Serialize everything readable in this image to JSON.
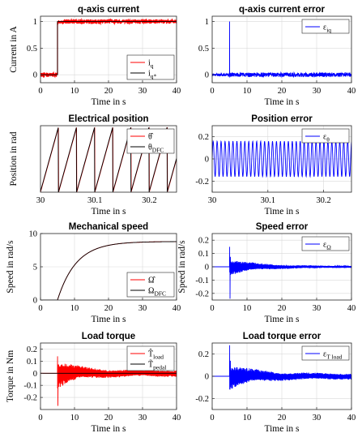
{
  "chart_data": [
    {
      "id": "p1",
      "type": "line",
      "title": "q-axis current",
      "xlabel": "Time in s",
      "ylabel": "Current in A",
      "xlim": [
        0,
        40
      ],
      "ylim": [
        -0.15,
        1.1
      ],
      "xticks": [
        0,
        10,
        20,
        30,
        40
      ],
      "xticklabels": [
        "0",
        "10",
        "20",
        "30",
        "40"
      ],
      "yticks": [
        0,
        0.5,
        1
      ],
      "yticklabels": [
        "0",
        "0.5",
        "1"
      ],
      "grid": true,
      "legend_position": "bottom-right",
      "series": [
        {
          "name": "i_q",
          "color": "#ff0000",
          "kind": "step",
          "step_at": 5,
          "before": 0,
          "after": 1,
          "noise": 0.04
        },
        {
          "name": "i_q*",
          "color": "#000000",
          "kind": "step",
          "step_at": 5,
          "before": 0,
          "after": 1,
          "noise": 0
        }
      ]
    },
    {
      "id": "p2",
      "type": "line",
      "title": "q-axis current error",
      "xlabel": "Time in s",
      "ylabel": "",
      "xlim": [
        0,
        40
      ],
      "ylim": [
        -0.15,
        1.1
      ],
      "xticks": [
        0,
        10,
        20,
        30,
        40
      ],
      "xticklabels": [
        "0",
        "10",
        "20",
        "30",
        "40"
      ],
      "yticks": [
        0,
        0.5,
        1
      ],
      "yticklabels": [
        "0",
        "0.5",
        "1"
      ],
      "grid": true,
      "legend_position": "top-right",
      "series": [
        {
          "name": "ε_iq",
          "color": "#0000ff",
          "kind": "error_noise",
          "t0": 5,
          "spike_peak": 1.0,
          "spike_trough": -0.05,
          "noise": 0.04
        }
      ]
    },
    {
      "id": "p3",
      "type": "line",
      "title": "Electrical position",
      "xlabel": "Time in s",
      "ylabel": "Position in rad",
      "xlim": [
        30,
        30.25
      ],
      "ylim": [
        0,
        6.4
      ],
      "xticks": [
        30,
        30.1,
        30.2
      ],
      "xticklabels": [
        "30",
        "30.1",
        "30.2"
      ],
      "yticks": [],
      "yticklabels": [],
      "grid": true,
      "legend_position": "top-right",
      "series": [
        {
          "name": "θ̂",
          "color": "#ff0000",
          "kind": "sawtooth",
          "period": 0.0333,
          "phase": 0.0,
          "max": 6.28
        },
        {
          "name": "θ_DFC",
          "color": "#000000",
          "kind": "sawtooth",
          "period": 0.0333,
          "phase": 0.0004,
          "max": 6.28
        }
      ]
    },
    {
      "id": "p4",
      "type": "line",
      "title": "Position error",
      "xlabel": "Time in s",
      "ylabel": "",
      "xlim": [
        30,
        30.25
      ],
      "ylim": [
        -0.3,
        0.3
      ],
      "xticks": [
        30,
        30.1,
        30.2
      ],
      "xticklabels": [
        "30",
        "30.1",
        "30.2"
      ],
      "yticks": [
        -0.2,
        0,
        0.2
      ],
      "yticklabels": [
        "-0.2",
        "0",
        "0.2"
      ],
      "grid": true,
      "legend_position": "top-right",
      "series": [
        {
          "name": "ε_θ",
          "color": "#0000ff",
          "kind": "sine",
          "period": 0.0071,
          "amplitude": 0.16,
          "offset": 0.0
        }
      ]
    },
    {
      "id": "p5",
      "type": "line",
      "title": "Mechanical speed",
      "xlabel": "Time in s",
      "ylabel": "Speed in rad/s",
      "xlim": [
        0,
        40
      ],
      "ylim": [
        0,
        10
      ],
      "xticks": [
        0,
        10,
        20,
        30,
        40
      ],
      "xticklabels": [
        "0",
        "10",
        "20",
        "30",
        "40"
      ],
      "yticks": [
        0,
        5,
        10
      ],
      "yticklabels": [
        "0",
        "5",
        "10"
      ],
      "grid": true,
      "legend_position": "bottom-right",
      "series": [
        {
          "name": "Ω̂",
          "color": "#ff0000",
          "kind": "first_order",
          "t0": 5,
          "final": 8.8,
          "tau": 5.5
        },
        {
          "name": "Ω_DFC",
          "color": "#000000",
          "kind": "first_order",
          "t0": 5,
          "final": 8.8,
          "tau": 5.5
        }
      ]
    },
    {
      "id": "p6",
      "type": "line",
      "title": "Speed error",
      "xlabel": "Time in s",
      "ylabel": "Speed in rad/s",
      "xlim": [
        0,
        40
      ],
      "ylim": [
        -0.25,
        0.25
      ],
      "xticks": [
        0,
        10,
        20,
        30,
        40
      ],
      "xticklabels": [
        "0",
        "10",
        "20",
        "30",
        "40"
      ],
      "yticks": [
        -0.2,
        -0.1,
        0,
        0.1,
        0.2
      ],
      "yticklabels": [
        "-0.2",
        "-0.1",
        "0",
        "0.1",
        "0.2"
      ],
      "grid": true,
      "legend_position": "top-right",
      "series": [
        {
          "name": "ε_Ω",
          "color": "#0000ff",
          "kind": "decaying_osc",
          "t0": 5,
          "spike_peak": 0.15,
          "spike_trough": -0.24,
          "amp0": 0.06,
          "decay": 8,
          "floor": 0.008
        }
      ]
    },
    {
      "id": "p7",
      "type": "line",
      "title": "Load torque",
      "xlabel": "Time in s",
      "ylabel": "Torque in Nm",
      "xlim": [
        0,
        40
      ],
      "ylim": [
        -0.3,
        0.25
      ],
      "xticks": [
        0,
        10,
        20,
        30,
        40
      ],
      "xticklabels": [
        "0",
        "10",
        "20",
        "30",
        "40"
      ],
      "yticks": [
        -0.2,
        -0.1,
        0,
        0.1,
        0.2
      ],
      "yticklabels": [
        "-0.2",
        "-0.1",
        "0",
        "0.1",
        "0.2"
      ],
      "grid": true,
      "legend_position": "top-right",
      "series": [
        {
          "name": "T̂_load",
          "color": "#ff0000",
          "kind": "decaying_osc",
          "t0": 5,
          "spike_peak": 0.14,
          "spike_trough": -0.27,
          "amp0": 0.1,
          "decay": 6,
          "floor": 0.03
        },
        {
          "name": "T̃_pedal",
          "color": "#000000",
          "kind": "flat",
          "value": 0
        }
      ]
    },
    {
      "id": "p8",
      "type": "line",
      "title": "Load torque error",
      "xlabel": "Time in s",
      "ylabel": "",
      "xlim": [
        0,
        40
      ],
      "ylim": [
        -0.3,
        0.3
      ],
      "xticks": [
        0,
        10,
        20,
        30,
        40
      ],
      "xticklabels": [
        "0",
        "10",
        "20",
        "30",
        "40"
      ],
      "yticks": [
        -0.2,
        0,
        0.2
      ],
      "yticklabels": [
        "-0.2",
        "0",
        "0.2"
      ],
      "grid": true,
      "legend_position": "top-right",
      "series": [
        {
          "name": "ε_T_load",
          "color": "#0000ff",
          "kind": "decaying_osc",
          "t0": 5,
          "spike_peak": 0.28,
          "spike_trough": -0.12,
          "amp0": 0.1,
          "decay": 7,
          "floor": 0.03
        }
      ]
    }
  ]
}
